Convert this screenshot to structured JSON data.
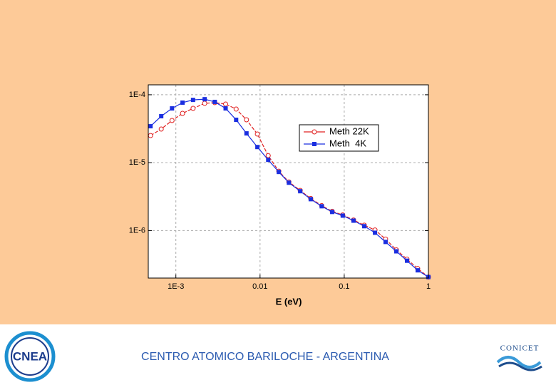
{
  "chart_data": {
    "type": "line",
    "x_label": "E (eV)",
    "x": [
      0.0005,
      0.00067,
      0.0009,
      0.0012,
      0.0016,
      0.0022,
      0.0029,
      0.0039,
      0.0052,
      0.0069,
      0.0093,
      0.0125,
      0.0167,
      0.022,
      0.03,
      0.04,
      0.054,
      0.072,
      0.096,
      0.129,
      0.173,
      0.232,
      0.31,
      0.416,
      0.557,
      0.746,
      1
    ],
    "series": [
      {
        "name": "Meth 22K",
        "color": "#e02020",
        "marker": "circle-open",
        "values": [
          2.51e-05,
          3.13e-05,
          4.18e-05,
          5.32e-05,
          6.3e-05,
          7.48e-05,
          7.66e-05,
          7.3e-05,
          6.16e-05,
          4.28e-05,
          2.64e-05,
          1.27e-05,
          7.5e-06,
          5.2e-06,
          3.9e-06,
          2.97e-06,
          2.33e-06,
          1.92e-06,
          1.7e-06,
          1.43e-06,
          1.2e-06,
          1.02e-06,
          7.5e-07,
          5.2e-07,
          3.8e-07,
          2.76e-07,
          2.07e-07
        ]
      },
      {
        "name": "Meth  4K",
        "color": "#1a2ee0",
        "marker": "square",
        "values": [
          3.44e-05,
          4.83e-05,
          6.3e-05,
          7.66e-05,
          8.4e-05,
          8.6e-05,
          7.85e-05,
          6.3e-05,
          4.28e-05,
          2.7e-05,
          1.7e-05,
          1.1e-05,
          7.3e-06,
          5.07e-06,
          3.8e-06,
          2.9e-06,
          2.28e-06,
          1.88e-06,
          1.66e-06,
          1.4e-06,
          1.16e-06,
          9.3e-07,
          6.8e-07,
          4.95e-07,
          3.6e-07,
          2.6e-07,
          2.07e-07
        ]
      }
    ],
    "xlim": [
      0.00047,
      1
    ],
    "ylim": [
      2e-07,
      0.00014
    ],
    "xticks": [
      {
        "value": 0.001,
        "label": "1E-3"
      },
      0.01,
      0.1,
      1
    ],
    "yticks": [
      {
        "value": 0.0001,
        "label": "1E-4"
      },
      {
        "value": 1e-05,
        "label": "1E-5"
      },
      {
        "value": 1e-06,
        "label": "1E-6"
      }
    ],
    "xlog": true,
    "ylog": true,
    "grid": true,
    "legend": "upper right"
  },
  "footer": {
    "title": "CENTRO ATOMICO BARILOCHE - ARGENTINA",
    "left_logo": "CNEA",
    "right_logo": "CONICET"
  }
}
